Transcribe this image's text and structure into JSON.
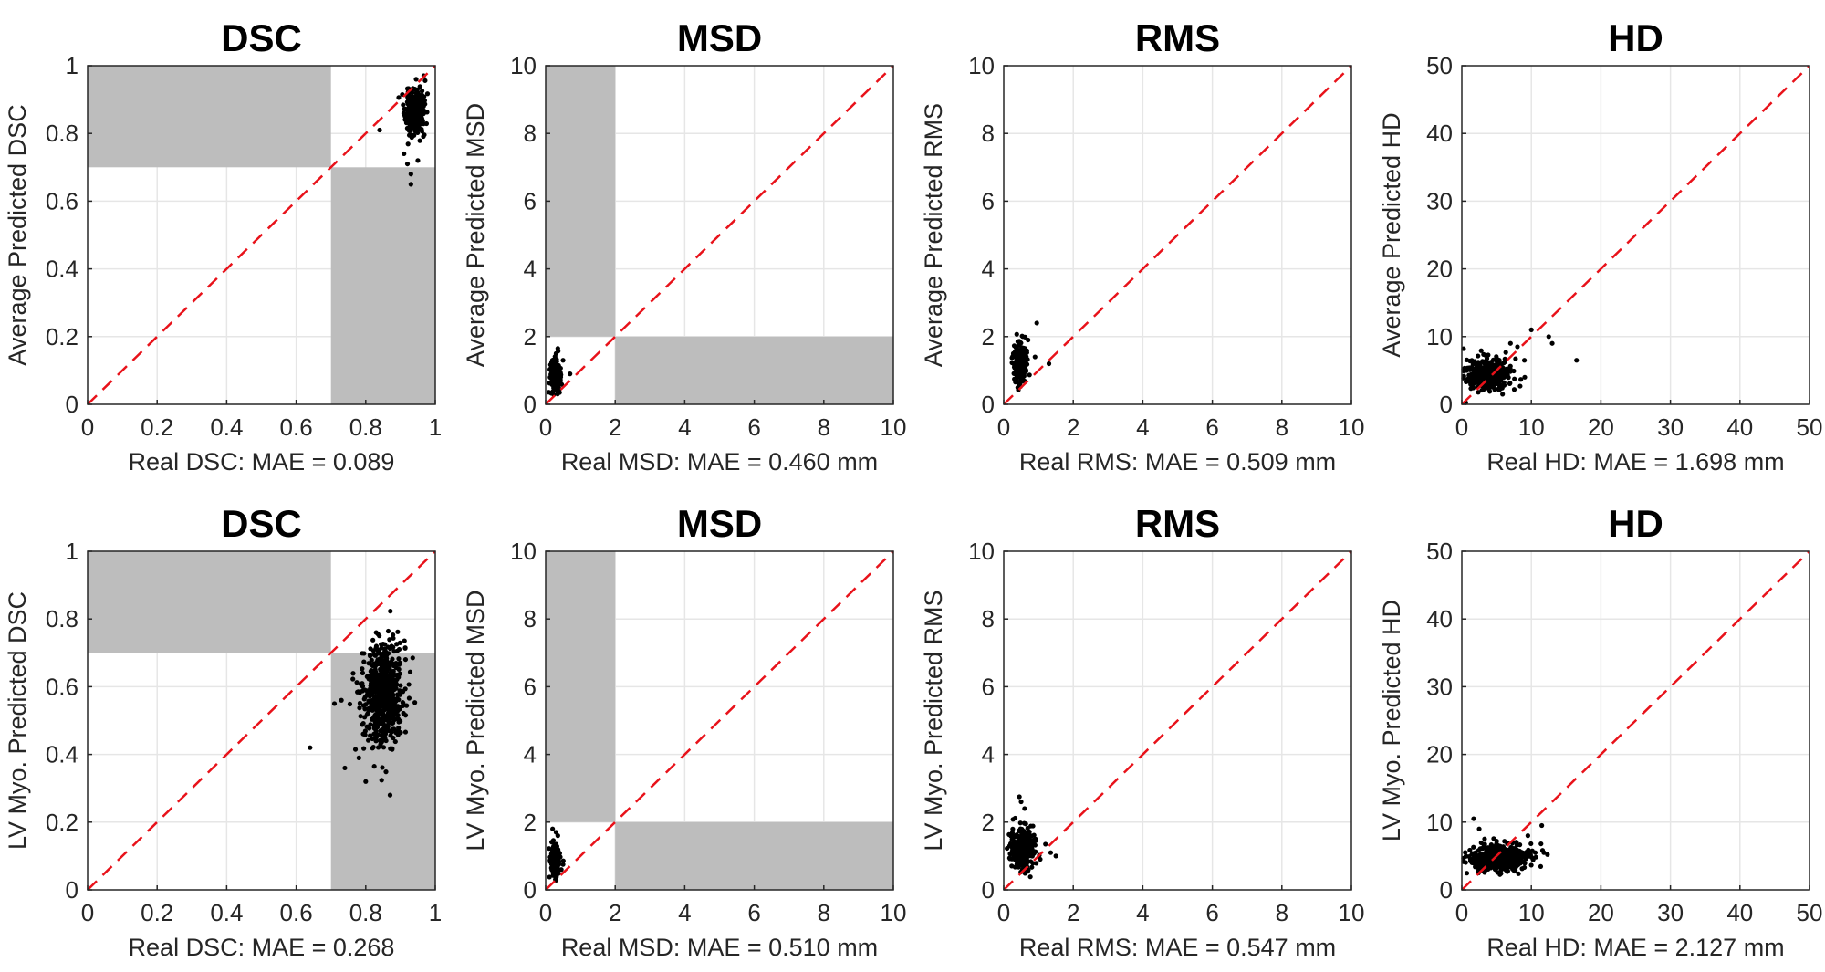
{
  "colors": {
    "points": "#000000",
    "identity_line": "#e8121a",
    "shaded_region": "#bdbdbd",
    "grid": "#e6e6e6"
  },
  "chart_data": [
    {
      "type": "scatter",
      "title": "DSC",
      "xlabel": "Real DSC: MAE = 0.089",
      "ylabel": "Average Predicted DSC",
      "xlim": [
        0,
        1
      ],
      "ylim": [
        0,
        1
      ],
      "xticks": [
        0,
        0.2,
        0.4,
        0.6,
        0.8,
        1
      ],
      "yticks": [
        0,
        0.2,
        0.4,
        0.6,
        0.8,
        1
      ],
      "xtick_labels": [
        "0",
        "0.2",
        "0.4",
        "0.6",
        "0.8",
        "1"
      ],
      "ytick_labels": [
        "0",
        "0.2",
        "0.4",
        "0.6",
        "0.8",
        "1"
      ],
      "grid": true,
      "identity_line": true,
      "shaded_regions": [
        {
          "x": [
            0,
            0.7
          ],
          "y": [
            0.7,
            1
          ]
        },
        {
          "x": [
            0.7,
            1
          ],
          "y": [
            0,
            0.7
          ]
        }
      ],
      "cluster": {
        "x_mean": 0.94,
        "x_sd": 0.013,
        "y_mean": 0.86,
        "y_sd": 0.032,
        "n": 330,
        "seed": 11
      },
      "outliers": [
        [
          0.84,
          0.81
        ],
        [
          0.91,
          0.74
        ],
        [
          0.92,
          0.71
        ],
        [
          0.93,
          0.68
        ],
        [
          0.93,
          0.65
        ],
        [
          0.95,
          0.72
        ]
      ]
    },
    {
      "type": "scatter",
      "title": "MSD",
      "xlabel": "Real MSD: MAE = 0.460 mm",
      "ylabel": "Average Predicted MSD",
      "xlim": [
        0,
        10
      ],
      "ylim": [
        0,
        10
      ],
      "xticks": [
        0,
        2,
        4,
        6,
        8,
        10
      ],
      "yticks": [
        0,
        2,
        4,
        6,
        8,
        10
      ],
      "xtick_labels": [
        "0",
        "2",
        "4",
        "6",
        "8",
        "10"
      ],
      "ytick_labels": [
        "0",
        "2",
        "4",
        "6",
        "8",
        "10"
      ],
      "grid": true,
      "identity_line": true,
      "shaded_regions": [
        {
          "x": [
            0,
            2
          ],
          "y": [
            2,
            10
          ]
        },
        {
          "x": [
            2,
            10
          ],
          "y": [
            0,
            2
          ]
        }
      ],
      "cluster": {
        "x_mean": 0.27,
        "x_sd": 0.07,
        "y_mean": 0.85,
        "y_sd": 0.22,
        "n": 230,
        "seed": 23
      },
      "outliers": [
        [
          0.35,
          1.65
        ],
        [
          0.3,
          1.5
        ],
        [
          0.7,
          0.9
        ],
        [
          0.5,
          1.3
        ],
        [
          0.4,
          0.35
        ]
      ]
    },
    {
      "type": "scatter",
      "title": "RMS",
      "xlabel": "Real RMS: MAE = 0.509 mm",
      "ylabel": "Average Predicted RMS",
      "xlim": [
        0,
        10
      ],
      "ylim": [
        0,
        10
      ],
      "xticks": [
        0,
        2,
        4,
        6,
        8,
        10
      ],
      "yticks": [
        0,
        2,
        4,
        6,
        8,
        10
      ],
      "xtick_labels": [
        "0",
        "2",
        "4",
        "6",
        "8",
        "10"
      ],
      "ytick_labels": [
        "0",
        "2",
        "4",
        "6",
        "8",
        "10"
      ],
      "grid": true,
      "identity_line": true,
      "shaded_regions": [],
      "cluster": {
        "x_mean": 0.48,
        "x_sd": 0.09,
        "y_mean": 1.2,
        "y_sd": 0.28,
        "n": 230,
        "seed": 37
      },
      "outliers": [
        [
          0.95,
          2.4
        ],
        [
          1.3,
          1.2
        ],
        [
          0.9,
          1.4
        ],
        [
          0.55,
          2.0
        ],
        [
          0.7,
          1.9
        ]
      ]
    },
    {
      "type": "scatter",
      "title": "HD",
      "xlabel": "Real HD: MAE = 1.698 mm",
      "ylabel": "Average Predicted HD",
      "xlim": [
        0,
        50
      ],
      "ylim": [
        0,
        50
      ],
      "xticks": [
        0,
        10,
        20,
        30,
        40,
        50
      ],
      "yticks": [
        0,
        10,
        20,
        30,
        40,
        50
      ],
      "xtick_labels": [
        "0",
        "10",
        "20",
        "30",
        "40",
        "50"
      ],
      "ytick_labels": [
        "0",
        "10",
        "20",
        "30",
        "40",
        "50"
      ],
      "grid": true,
      "identity_line": true,
      "shaded_regions": [],
      "cluster": {
        "x_mean": 3.8,
        "x_sd": 1.6,
        "y_mean": 4.6,
        "y_sd": 1.3,
        "n": 330,
        "seed": 41
      },
      "outliers": [
        [
          10,
          11
        ],
        [
          12.5,
          10
        ],
        [
          13,
          9
        ],
        [
          16.5,
          6.5
        ],
        [
          8,
          8.5
        ],
        [
          9,
          6.5
        ],
        [
          7,
          9
        ]
      ]
    },
    {
      "type": "scatter",
      "title": "DSC",
      "xlabel": "Real DSC: MAE = 0.268",
      "ylabel": "LV Myo. Predicted DSC",
      "xlim": [
        0,
        1
      ],
      "ylim": [
        0,
        1
      ],
      "xticks": [
        0,
        0.2,
        0.4,
        0.6,
        0.8,
        1
      ],
      "yticks": [
        0,
        0.2,
        0.4,
        0.6,
        0.8,
        1
      ],
      "xtick_labels": [
        "0",
        "0.2",
        "0.4",
        "0.6",
        "0.8",
        "1"
      ],
      "ytick_labels": [
        "0",
        "0.2",
        "0.4",
        "0.6",
        "0.8",
        "1"
      ],
      "grid": true,
      "identity_line": true,
      "shaded_regions": [
        {
          "x": [
            0,
            0.7
          ],
          "y": [
            0.7,
            1
          ]
        },
        {
          "x": [
            0.7,
            1
          ],
          "y": [
            0,
            0.7
          ]
        }
      ],
      "cluster": {
        "x_mean": 0.85,
        "x_sd": 0.028,
        "y_mean": 0.58,
        "y_sd": 0.075,
        "n": 650,
        "seed": 53
      },
      "outliers": [
        [
          0.64,
          0.42
        ],
        [
          0.74,
          0.36
        ],
        [
          0.8,
          0.32
        ],
        [
          0.87,
          0.28
        ],
        [
          0.71,
          0.55
        ],
        [
          0.73,
          0.56
        ],
        [
          0.83,
          0.76
        ]
      ]
    },
    {
      "type": "scatter",
      "title": "MSD",
      "xlabel": "Real MSD: MAE = 0.510 mm",
      "ylabel": "LV Myo. Predicted MSD",
      "xlim": [
        0,
        10
      ],
      "ylim": [
        0,
        10
      ],
      "xticks": [
        0,
        2,
        4,
        6,
        8,
        10
      ],
      "yticks": [
        0,
        2,
        4,
        6,
        8,
        10
      ],
      "xtick_labels": [
        "0",
        "2",
        "4",
        "6",
        "8",
        "10"
      ],
      "ytick_labels": [
        "0",
        "2",
        "4",
        "6",
        "8",
        "10"
      ],
      "grid": true,
      "identity_line": true,
      "shaded_regions": [
        {
          "x": [
            0,
            2
          ],
          "y": [
            2,
            10
          ]
        },
        {
          "x": [
            2,
            10
          ],
          "y": [
            0,
            2
          ]
        }
      ],
      "cluster": {
        "x_mean": 0.26,
        "x_sd": 0.06,
        "y_mean": 0.9,
        "y_sd": 0.22,
        "n": 230,
        "seed": 67
      },
      "outliers": [
        [
          0.2,
          1.8
        ],
        [
          0.3,
          1.7
        ],
        [
          0.45,
          0.6
        ],
        [
          0.5,
          0.75
        ],
        [
          0.35,
          1.6
        ]
      ]
    },
    {
      "type": "scatter",
      "title": "RMS",
      "xlabel": "Real RMS: MAE = 0.547 mm",
      "ylabel": "LV Myo. Predicted RMS",
      "xlim": [
        0,
        10
      ],
      "ylim": [
        0,
        10
      ],
      "xticks": [
        0,
        2,
        4,
        6,
        8,
        10
      ],
      "yticks": [
        0,
        2,
        4,
        6,
        8,
        10
      ],
      "xtick_labels": [
        "0",
        "2",
        "4",
        "6",
        "8",
        "10"
      ],
      "ytick_labels": [
        "0",
        "2",
        "4",
        "6",
        "8",
        "10"
      ],
      "grid": true,
      "identity_line": true,
      "shaded_regions": [],
      "cluster": {
        "x_mean": 0.55,
        "x_sd": 0.18,
        "y_mean": 1.2,
        "y_sd": 0.3,
        "n": 300,
        "seed": 79
      },
      "outliers": [
        [
          0.45,
          2.75
        ],
        [
          0.5,
          2.6
        ],
        [
          0.6,
          2.4
        ],
        [
          1.5,
          1.0
        ],
        [
          1.35,
          1.1
        ],
        [
          1.2,
          1.35
        ]
      ]
    },
    {
      "type": "scatter",
      "title": "HD",
      "xlabel": "Real HD: MAE = 2.127 mm",
      "ylabel": "LV Myo. Predicted HD",
      "xlim": [
        0,
        50
      ],
      "ylim": [
        0,
        50
      ],
      "xticks": [
        0,
        10,
        20,
        30,
        40,
        50
      ],
      "yticks": [
        0,
        10,
        20,
        30,
        40,
        50
      ],
      "xtick_labels": [
        "0",
        "10",
        "20",
        "30",
        "40",
        "50"
      ],
      "ytick_labels": [
        "0",
        "10",
        "20",
        "30",
        "40",
        "50"
      ],
      "grid": true,
      "identity_line": true,
      "shaded_regions": [],
      "cluster": {
        "x_mean": 5.5,
        "x_sd": 2.1,
        "y_mean": 4.6,
        "y_sd": 0.95,
        "n": 520,
        "seed": 97
      },
      "outliers": [
        [
          1.7,
          10.5
        ],
        [
          11.5,
          9.5
        ],
        [
          11.8,
          5.5
        ],
        [
          2.5,
          9
        ],
        [
          9.5,
          8
        ]
      ]
    }
  ]
}
